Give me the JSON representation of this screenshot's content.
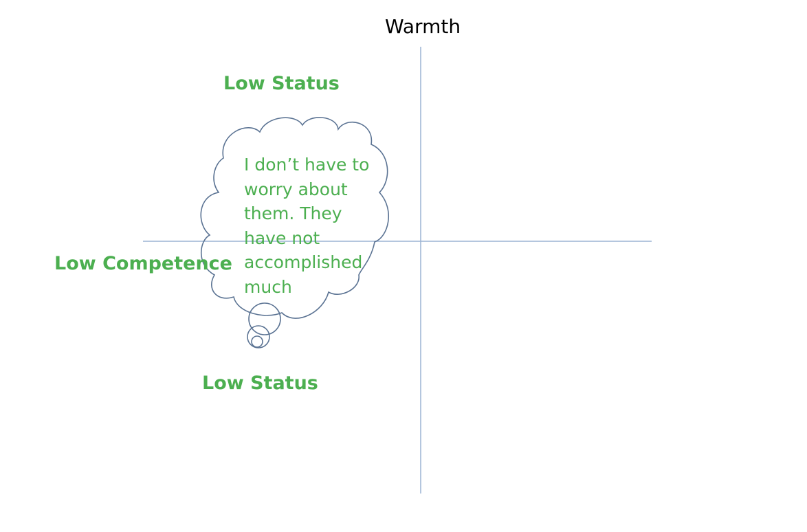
{
  "diagram": {
    "axis_top_label": "Warmth",
    "quadrant_top_label": "Low Status",
    "quadrant_bottom_label": "Low Status",
    "axis_left_label": "Low Competence",
    "thought_bubble_text": "I don’t have to worry about them.  They have not accomplished much"
  },
  "colors": {
    "label_green": "#4caf50",
    "axis_line": "#9bb3d4",
    "bubble_outline": "#5b7393"
  }
}
